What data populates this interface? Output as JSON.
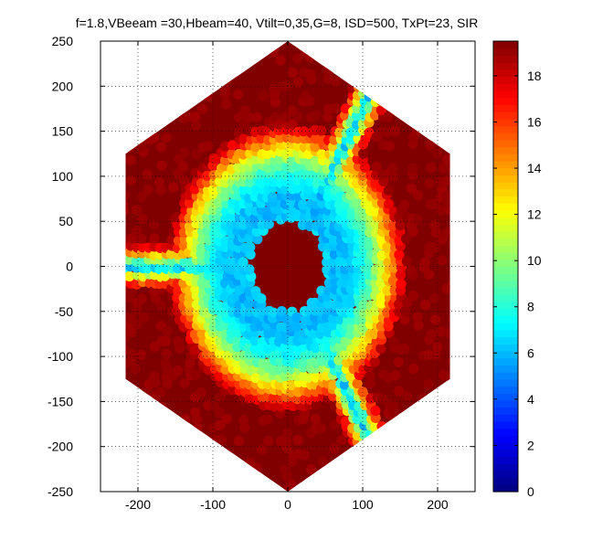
{
  "chart_data": {
    "type": "heatmap",
    "title": "f=1.8,VBeeam =30,Hbeam=40, Vtilt=0,35,G=8, ISD=500, TxPt=23, SIR",
    "xlabel": "",
    "ylabel": "",
    "xlim": [
      -250,
      250
    ],
    "ylim": [
      -250,
      250
    ],
    "x_ticks": [
      -200,
      -100,
      0,
      100,
      200
    ],
    "y_ticks": [
      250,
      200,
      150,
      100,
      50,
      0,
      -50,
      -100,
      -150,
      -200,
      -250
    ],
    "grid": true,
    "colormap": "jet",
    "colorbar": {
      "range": [
        0,
        19.5
      ],
      "ticks": [
        0,
        2,
        4,
        6,
        8,
        10,
        12,
        14,
        16,
        18
      ]
    },
    "region": {
      "shape": "hexagon",
      "circumradius": 250,
      "orientation": "pointy-top"
    },
    "features": {
      "center_core_radius": 50,
      "ring_radius": 68,
      "ring_min_value": 6,
      "sector_boundary_angles_deg": [
        60,
        180,
        300
      ],
      "sector_boundary_min_value": 6,
      "max_value": 19.5
    }
  },
  "colors": {
    "background": "#ffffff",
    "axes_frame": "#000000",
    "grid": "#000000"
  }
}
